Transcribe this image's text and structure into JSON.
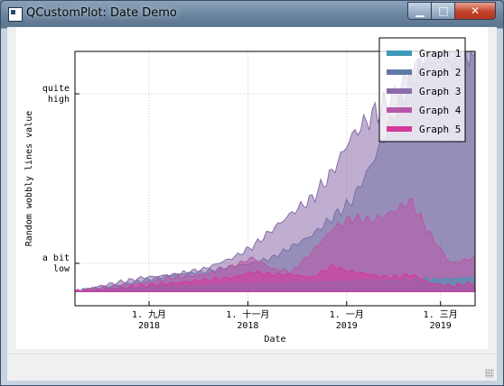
{
  "window": {
    "title": "QCustomPlot: Date Demo",
    "controls": {
      "minimize": "▁",
      "maximize": "□",
      "close": "✕"
    }
  },
  "chart_data": {
    "type": "area",
    "xlabel": "Date",
    "ylabel": "Random wobbly lines value",
    "x_ticks": [
      {
        "x": 1.1,
        "line1": "1. 九月",
        "line2": "2018"
      },
      {
        "x": 3.1,
        "line1": "1. 十一月",
        "line2": "2018"
      },
      {
        "x": 5.1,
        "line1": "1. 一月",
        "line2": "2019"
      },
      {
        "x": 7.0,
        "line1": "1. 三月",
        "line2": "2019"
      }
    ],
    "xlim": [
      -0.4,
      7.7
    ],
    "y_ticks": [
      {
        "y": 70,
        "line1": "quite",
        "line2": "high"
      },
      {
        "y": 10,
        "line1": "a bit",
        "line2": "low"
      }
    ],
    "ylim": [
      -5,
      85
    ],
    "grid": true,
    "legend_position": "top-right",
    "series": [
      {
        "name": "Graph 1",
        "color": "#3f9ab8",
        "x": [
          -0.4,
          0.4,
          1.2,
          2.0,
          2.8,
          3.6,
          4.4,
          5.2,
          6.0,
          6.6,
          7.2,
          7.7
        ],
        "values": [
          0,
          1,
          1.5,
          2,
          2.5,
          3,
          3.2,
          3.6,
          4,
          4.2,
          4.5,
          5
        ]
      },
      {
        "name": "Graph 2",
        "color": "#5f79a8",
        "x": [
          -0.4,
          0.4,
          1.0,
          1.6,
          2.2,
          2.8,
          3.2,
          3.6,
          4.0,
          4.4,
          4.8,
          5.2,
          5.6,
          6.0,
          6.4,
          6.8,
          7.2,
          7.7
        ],
        "values": [
          0,
          2,
          4,
          6,
          7,
          9,
          10,
          12,
          16,
          20,
          26,
          32,
          45,
          60,
          75,
          85,
          85,
          85
        ]
      },
      {
        "name": "Graph 3",
        "color": "#8a6ca8",
        "x": [
          -0.4,
          0.4,
          1.0,
          1.6,
          2.2,
          2.8,
          3.2,
          3.6,
          4.0,
          4.4,
          4.8,
          5.2,
          5.6,
          6.0,
          6.4,
          6.8,
          7.2,
          7.7
        ],
        "values": [
          0,
          3,
          5,
          6,
          8,
          12,
          16,
          22,
          28,
          33,
          42,
          55,
          62,
          68,
          78,
          85,
          85,
          85
        ]
      },
      {
        "name": "Graph 4",
        "color": "#b857a8",
        "x": [
          -0.4,
          0.4,
          1.0,
          1.6,
          2.2,
          2.8,
          3.2,
          3.6,
          4.0,
          4.4,
          4.8,
          5.2,
          5.6,
          6.0,
          6.4,
          6.8,
          7.2,
          7.7
        ],
        "values": [
          0,
          2,
          3,
          5,
          6,
          9,
          12,
          8,
          7,
          14,
          22,
          26,
          25,
          28,
          32,
          20,
          10,
          12
        ]
      },
      {
        "name": "Graph 5",
        "color": "#d6389a",
        "x": [
          -0.4,
          0.4,
          1.0,
          1.6,
          2.2,
          2.8,
          3.2,
          3.6,
          4.0,
          4.4,
          4.8,
          5.2,
          5.6,
          6.0,
          6.4,
          6.8,
          7.2,
          7.7
        ],
        "values": [
          0,
          1,
          2,
          3,
          4,
          5,
          7,
          6,
          6,
          5,
          9,
          7,
          6,
          5,
          6,
          3,
          2,
          3
        ]
      }
    ]
  }
}
